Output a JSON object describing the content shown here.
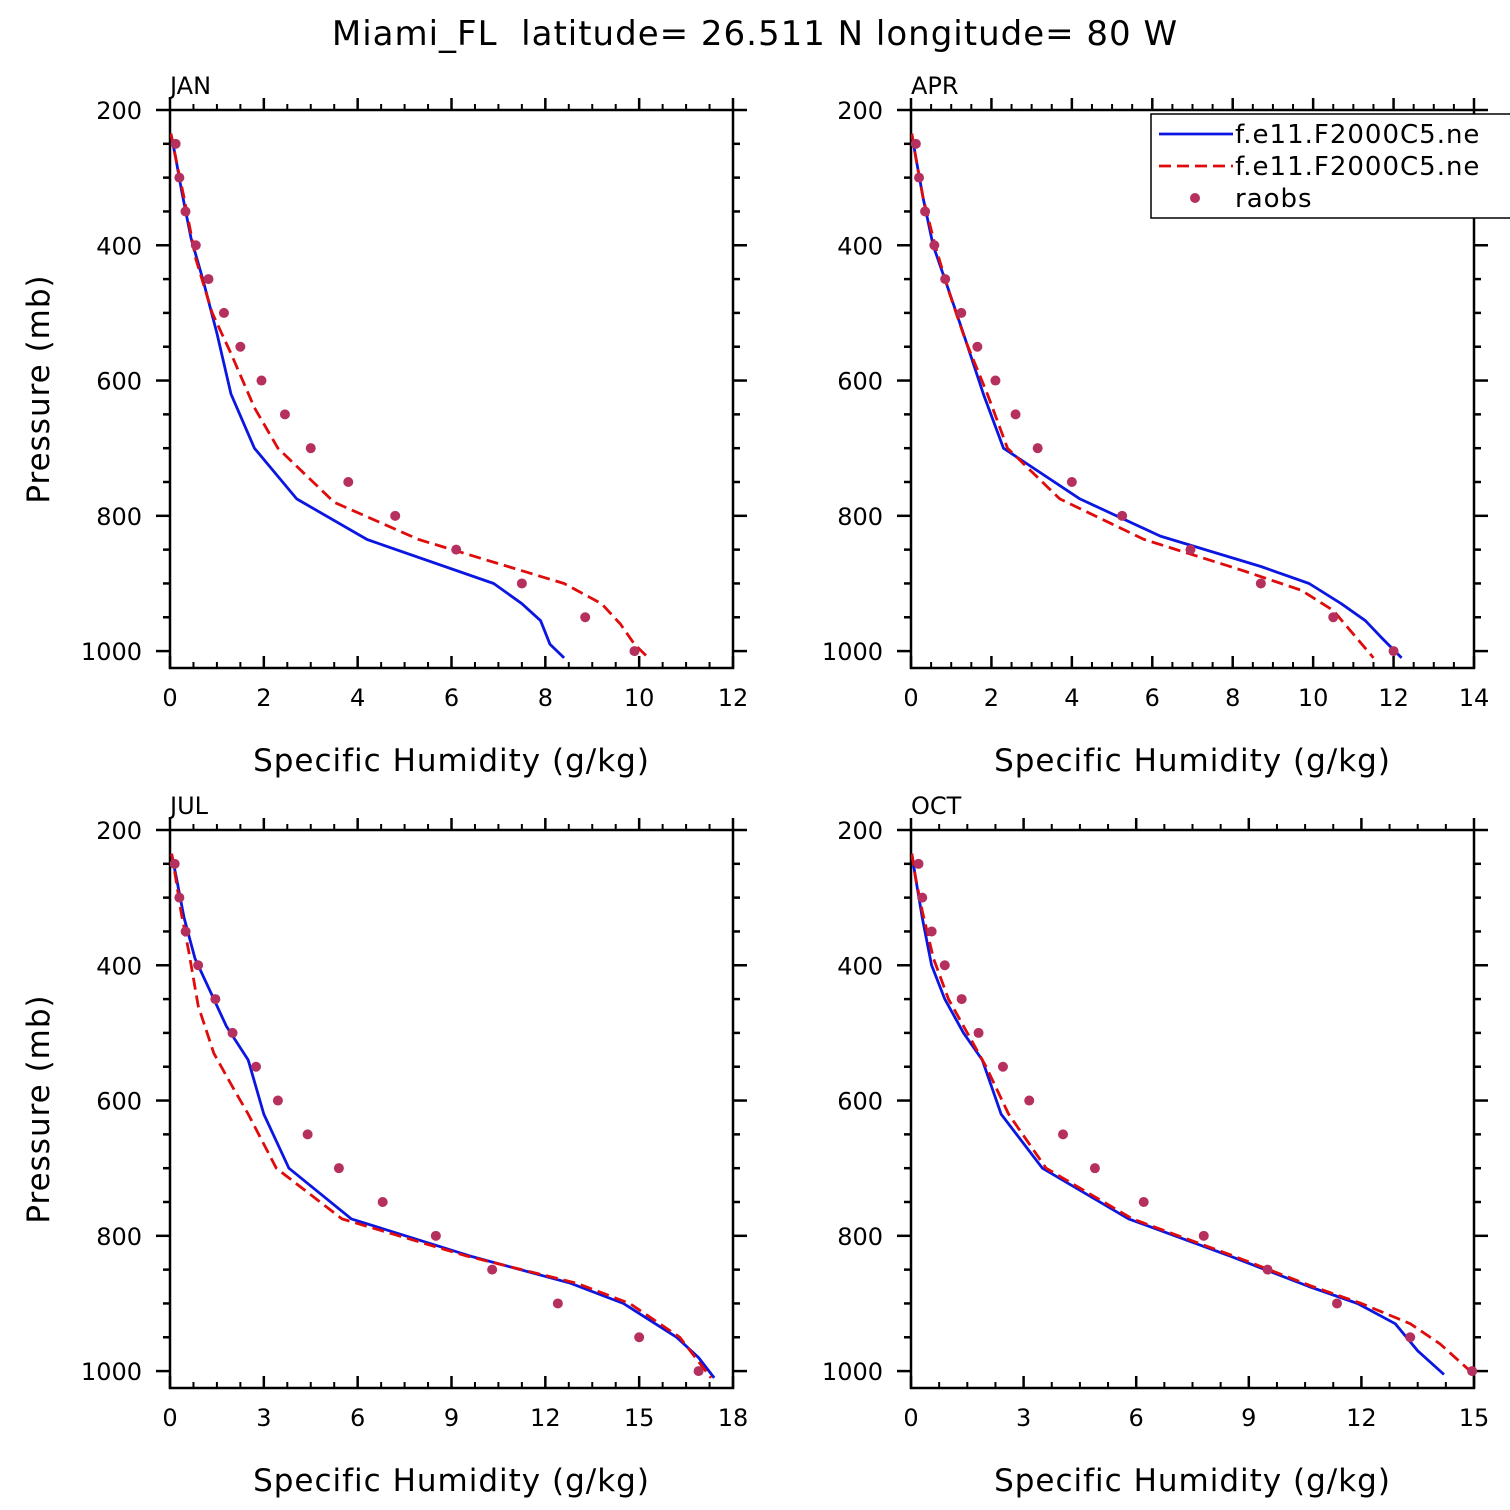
{
  "page": {
    "title": "Miami_FL  latitude= 26.511 N longitude= 80 W"
  },
  "legend": {
    "entries": [
      {
        "label": "f.e11.F2000C5.ne",
        "color": "#0b17e0",
        "style": "solid"
      },
      {
        "label": "f.e11.F2000C5.ne",
        "color": "#e00b0b",
        "style": "dashed"
      },
      {
        "label": "raobs",
        "color": "#b5305e",
        "style": "marker"
      }
    ]
  },
  "chart_data": [
    {
      "type": "line",
      "panel_title": "JAN",
      "xlabel": "Specific Humidity (g/kg)",
      "ylabel": "Pressure (mb)",
      "xlim": [
        0,
        12
      ],
      "xticks": [
        "0",
        "2",
        "4",
        "6",
        "8",
        "10",
        "12"
      ],
      "ylim": [
        1025,
        200
      ],
      "yticks": [
        "200",
        "400",
        "600",
        "800",
        "1000"
      ],
      "series": [
        {
          "style": "solid",
          "color": "#0b17e0",
          "x": [
            0.02,
            0.12,
            0.25,
            0.45,
            0.7,
            1.0,
            1.3,
            1.8,
            2.7,
            4.2,
            6.9,
            7.5,
            7.9,
            8.1,
            8.4
          ],
          "y": [
            235,
            270,
            320,
            390,
            450,
            530,
            620,
            700,
            775,
            835,
            900,
            930,
            955,
            990,
            1010
          ]
        },
        {
          "style": "dashed",
          "color": "#e00b0b",
          "x": [
            0.02,
            0.12,
            0.3,
            0.55,
            0.9,
            1.3,
            1.8,
            2.3,
            3.5,
            5.3,
            8.4,
            9.2,
            9.6,
            9.9,
            10.2
          ],
          "y": [
            235,
            270,
            330,
            420,
            500,
            560,
            640,
            700,
            780,
            835,
            900,
            930,
            960,
            990,
            1010
          ]
        },
        {
          "style": "marker",
          "color": "#b5305e",
          "x": [
            0.12,
            0.2,
            0.33,
            0.55,
            0.82,
            1.15,
            1.5,
            1.95,
            2.45,
            3.0,
            3.8,
            4.8,
            6.1,
            7.5,
            8.85,
            9.9
          ],
          "y": [
            250,
            300,
            350,
            400,
            450,
            500,
            550,
            600,
            650,
            700,
            750,
            800,
            850,
            900,
            950,
            1000
          ]
        }
      ]
    },
    {
      "type": "line",
      "panel_title": "APR",
      "xlabel": "Specific Humidity (g/kg)",
      "ylabel": "",
      "xlim": [
        0,
        14
      ],
      "xticks": [
        "0",
        "2",
        "4",
        "6",
        "8",
        "10",
        "12",
        "14"
      ],
      "ylim": [
        1025,
        200
      ],
      "yticks": [
        "200",
        "400",
        "600",
        "800",
        "1000"
      ],
      "series": [
        {
          "style": "solid",
          "color": "#0b17e0",
          "x": [
            0.02,
            0.12,
            0.3,
            0.55,
            0.9,
            1.3,
            1.8,
            2.3,
            4.2,
            6.2,
            8.7,
            9.9,
            10.7,
            11.3,
            11.7,
            12.2
          ],
          "y": [
            235,
            270,
            330,
            400,
            460,
            530,
            620,
            700,
            775,
            830,
            875,
            900,
            930,
            955,
            980,
            1010
          ]
        },
        {
          "style": "dashed",
          "color": "#e00b0b",
          "x": [
            0.02,
            0.12,
            0.3,
            0.6,
            0.95,
            1.35,
            1.9,
            2.4,
            3.7,
            5.8,
            8.2,
            9.7,
            10.5,
            11.0,
            11.5
          ],
          "y": [
            235,
            270,
            330,
            400,
            470,
            540,
            620,
            700,
            775,
            835,
            880,
            910,
            940,
            975,
            1010
          ]
        },
        {
          "style": "marker",
          "color": "#b5305e",
          "x": [
            0.12,
            0.2,
            0.35,
            0.58,
            0.85,
            1.25,
            1.65,
            2.1,
            2.6,
            3.15,
            4.0,
            5.25,
            6.95,
            8.7,
            10.5,
            12.0
          ],
          "y": [
            250,
            300,
            350,
            400,
            450,
            500,
            550,
            600,
            650,
            700,
            750,
            800,
            850,
            900,
            950,
            1000
          ]
        }
      ]
    },
    {
      "type": "line",
      "panel_title": "JUL",
      "xlabel": "Specific Humidity (g/kg)",
      "ylabel": "Pressure (mb)",
      "xlim": [
        0,
        18
      ],
      "xticks": [
        "0",
        "3",
        "6",
        "9",
        "12",
        "15",
        "18"
      ],
      "ylim": [
        1025,
        200
      ],
      "yticks": [
        "200",
        "400",
        "600",
        "800",
        "1000"
      ],
      "series": [
        {
          "style": "solid",
          "color": "#0b17e0",
          "x": [
            0.05,
            0.2,
            0.45,
            0.8,
            1.3,
            1.8,
            2.5,
            3.0,
            3.8,
            5.8,
            9.6,
            12.8,
            14.5,
            16.2,
            16.9,
            17.4
          ],
          "y": [
            235,
            270,
            330,
            390,
            440,
            490,
            540,
            620,
            700,
            775,
            830,
            870,
            900,
            950,
            980,
            1010
          ]
        },
        {
          "style": "dashed",
          "color": "#e00b0b",
          "x": [
            0.05,
            0.18,
            0.35,
            0.6,
            0.9,
            1.4,
            2.0,
            2.5,
            3.4,
            5.5,
            9.5,
            13.0,
            14.7,
            16.3,
            16.8,
            17.3
          ],
          "y": [
            235,
            270,
            320,
            380,
            460,
            530,
            580,
            620,
            700,
            775,
            830,
            870,
            900,
            950,
            980,
            1010
          ]
        },
        {
          "style": "marker",
          "color": "#b5305e",
          "x": [
            0.15,
            0.3,
            0.5,
            0.9,
            1.45,
            2.0,
            2.75,
            3.45,
            4.4,
            5.4,
            6.8,
            8.5,
            10.3,
            12.4,
            15.0,
            16.9
          ],
          "y": [
            250,
            300,
            350,
            400,
            450,
            500,
            550,
            600,
            650,
            700,
            750,
            800,
            850,
            900,
            950,
            1000
          ]
        }
      ]
    },
    {
      "type": "line",
      "panel_title": "OCT",
      "xlabel": "Specific Humidity (g/kg)",
      "ylabel": "",
      "xlim": [
        0,
        15
      ],
      "xticks": [
        "0",
        "3",
        "6",
        "9",
        "12",
        "15"
      ],
      "ylim": [
        1025,
        200
      ],
      "yticks": [
        "200",
        "400",
        "600",
        "800",
        "1000"
      ],
      "series": [
        {
          "style": "solid",
          "color": "#0b17e0",
          "x": [
            0.02,
            0.12,
            0.3,
            0.55,
            0.9,
            1.4,
            1.9,
            2.4,
            3.5,
            5.8,
            8.5,
            10.6,
            11.9,
            12.9,
            13.5,
            14.2
          ],
          "y": [
            235,
            270,
            330,
            400,
            450,
            500,
            540,
            620,
            700,
            775,
            830,
            875,
            900,
            930,
            970,
            1005
          ]
        },
        {
          "style": "dashed",
          "color": "#e00b0b",
          "x": [
            0.02,
            0.12,
            0.3,
            0.6,
            1.0,
            1.5,
            2.0,
            2.6,
            3.6,
            5.9,
            8.6,
            10.7,
            12.0,
            13.3,
            14.1,
            14.9
          ],
          "y": [
            235,
            270,
            320,
            390,
            450,
            500,
            550,
            620,
            700,
            775,
            830,
            875,
            900,
            930,
            960,
            1000
          ]
        },
        {
          "style": "marker",
          "color": "#b5305e",
          "x": [
            0.2,
            0.3,
            0.55,
            0.9,
            1.35,
            1.8,
            2.45,
            3.15,
            4.05,
            4.9,
            6.2,
            7.8,
            9.5,
            11.35,
            13.3,
            14.95
          ],
          "y": [
            250,
            300,
            350,
            400,
            450,
            500,
            550,
            600,
            650,
            700,
            750,
            800,
            850,
            900,
            950,
            1000
          ]
        }
      ]
    }
  ]
}
